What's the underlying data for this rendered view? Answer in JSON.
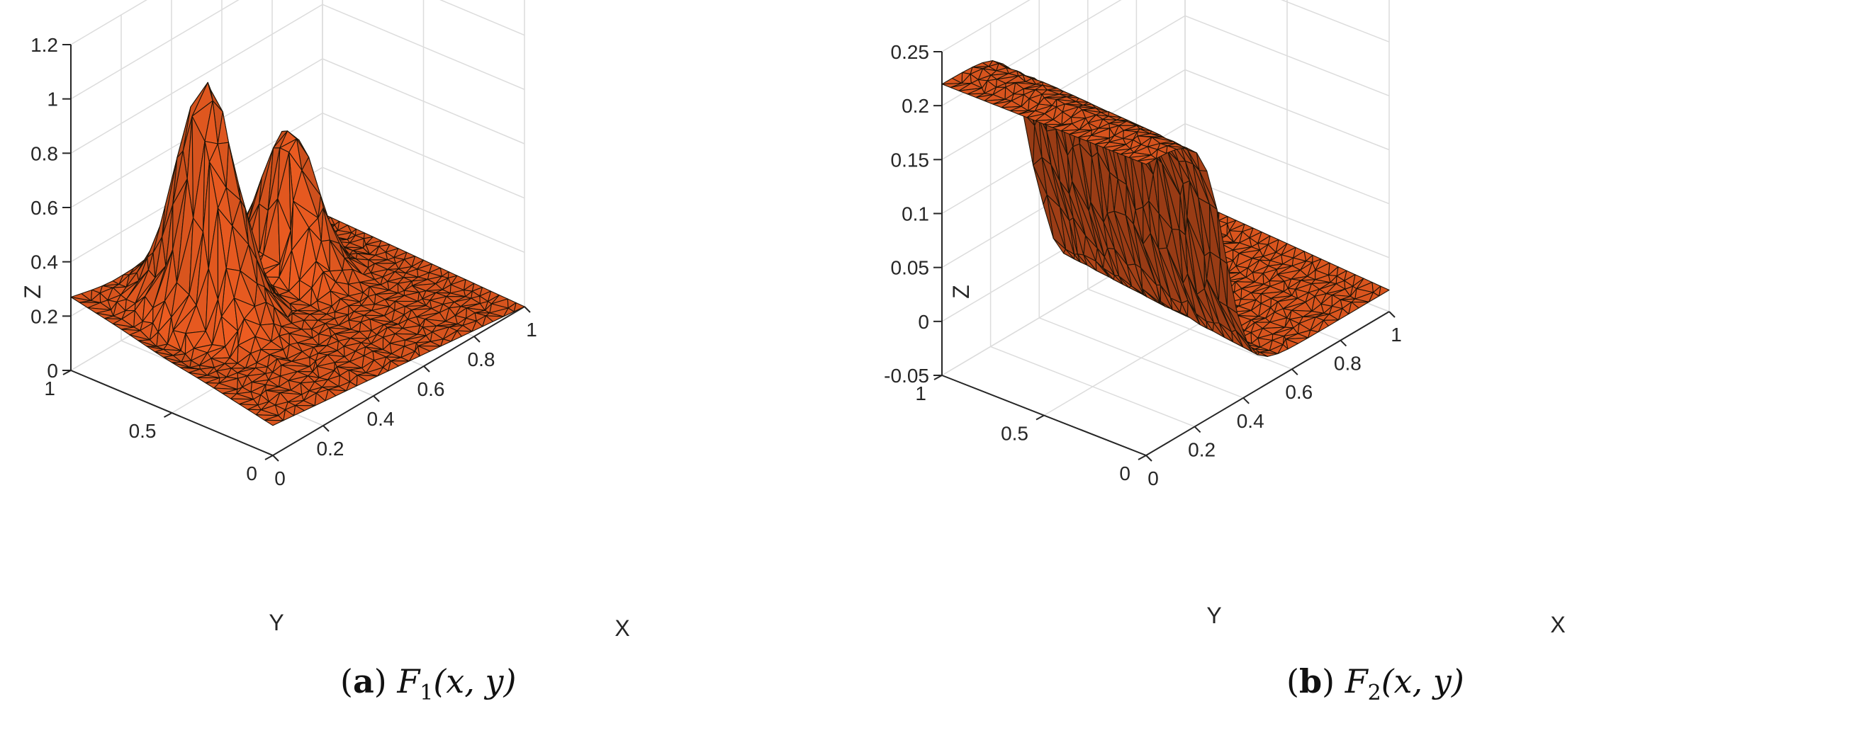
{
  "figure": {
    "panels": [
      {
        "caption": {
          "open": "(",
          "label": "a",
          "close": ")",
          "func": "F",
          "sub": "1",
          "args": "(x, y)"
        },
        "surface_color": "#d8541e",
        "edge_color": "#1f1408"
      },
      {
        "caption": {
          "open": "(",
          "label": "b",
          "close": ")",
          "func": "F",
          "sub": "2",
          "args": "(x, y)"
        },
        "surface_color": "#d8541e",
        "edge_color": "#1f1408"
      }
    ]
  },
  "chart_data": [
    {
      "type": "surface",
      "title": "(a) F1(x, y)",
      "xlabel": "X",
      "ylabel": "Y",
      "zlabel": "Z",
      "xlim": [
        0,
        1
      ],
      "ylim": [
        0,
        1
      ],
      "zlim": [
        0,
        1.2
      ],
      "xticks": [
        0,
        0.2,
        0.4,
        0.6,
        0.8,
        1
      ],
      "xtick_labels": [
        "0",
        "0.2",
        "0.4",
        "0.6",
        "0.8",
        "1"
      ],
      "yticks": [
        0,
        0.5,
        1
      ],
      "ytick_labels": [
        "0",
        "0.5",
        "1"
      ],
      "zticks": [
        0,
        0.2,
        0.4,
        0.6,
        0.8,
        1,
        1.2
      ],
      "ztick_labels": [
        "0",
        "0.2",
        "0.4",
        "0.6",
        "0.8",
        "1",
        "1.2"
      ],
      "grid": true,
      "function": "F1",
      "peaks": [
        {
          "x": 0.3,
          "y": 0.7,
          "z": 0.94
        },
        {
          "x": 0.67,
          "y": 0.75,
          "z": 0.56
        }
      ],
      "corner_values": {
        "x0_y0": 0.11,
        "x1_y0": 0.0,
        "x0_y1": 0.27,
        "x1_y1": 0.03
      }
    },
    {
      "type": "surface",
      "title": "(b) F2(x, y)",
      "xlabel": "X",
      "ylabel": "Y",
      "zlabel": "Z",
      "xlim": [
        0,
        1
      ],
      "ylim": [
        0,
        1
      ],
      "zlim": [
        -0.05,
        0.25
      ],
      "xticks": [
        0,
        0.2,
        0.4,
        0.6,
        0.8,
        1
      ],
      "xtick_labels": [
        "0",
        "0.2",
        "0.4",
        "0.6",
        "0.8",
        "1"
      ],
      "yticks": [
        0,
        0.5,
        1
      ],
      "ytick_labels": [
        "0",
        "0.5",
        "1"
      ],
      "zticks": [
        -0.05,
        0,
        0.05,
        0.1,
        0.15,
        0.2,
        0.25
      ],
      "ztick_labels": [
        "-0.05",
        "0",
        "0.05",
        "0.1",
        "0.15",
        "0.2",
        "0.25"
      ],
      "grid": true,
      "function": "F2",
      "step_transition_x": 0.35,
      "high_value": 0.22,
      "low_value": -0.02,
      "corner_values": {
        "x0_y0": 0.22,
        "x1_y0": -0.04,
        "x0_y1": 0.22,
        "x1_y1": -0.01
      }
    }
  ]
}
